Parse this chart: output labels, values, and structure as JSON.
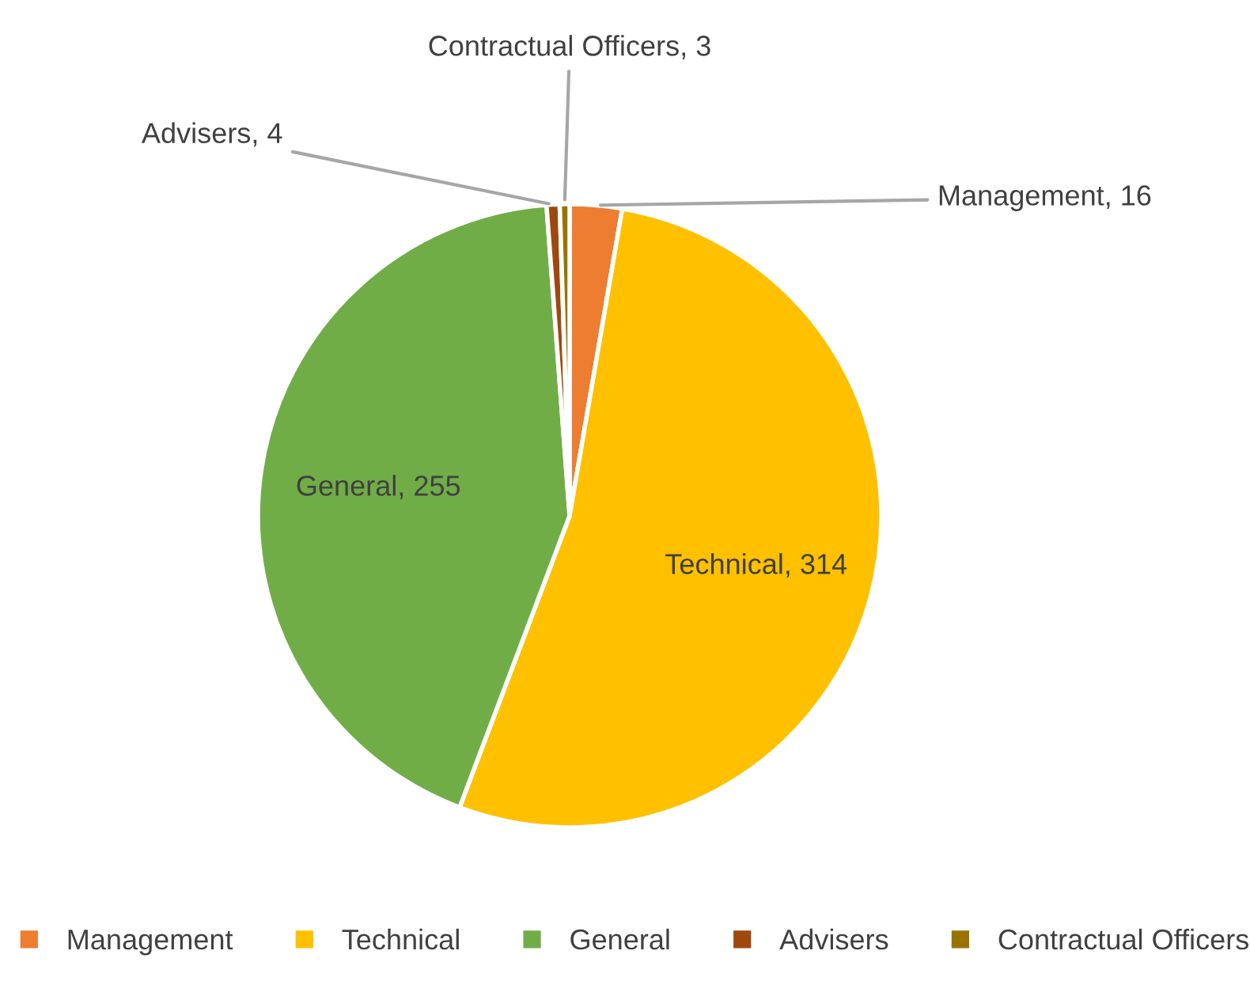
{
  "chart_data": {
    "type": "pie",
    "categories": [
      "Management",
      "Technical",
      "General",
      "Advisers",
      "Contractual Officers"
    ],
    "values": [
      16,
      314,
      255,
      4,
      3
    ],
    "colors": [
      "#ed7d31",
      "#ffc000",
      "#70ad47",
      "#9e480e",
      "#997300"
    ],
    "value_labels": [
      "Management, 16",
      "Technical, 314",
      "General, 255",
      "Advisers, 4",
      "Contractual Officers, 3"
    ],
    "legend": "bottom"
  }
}
